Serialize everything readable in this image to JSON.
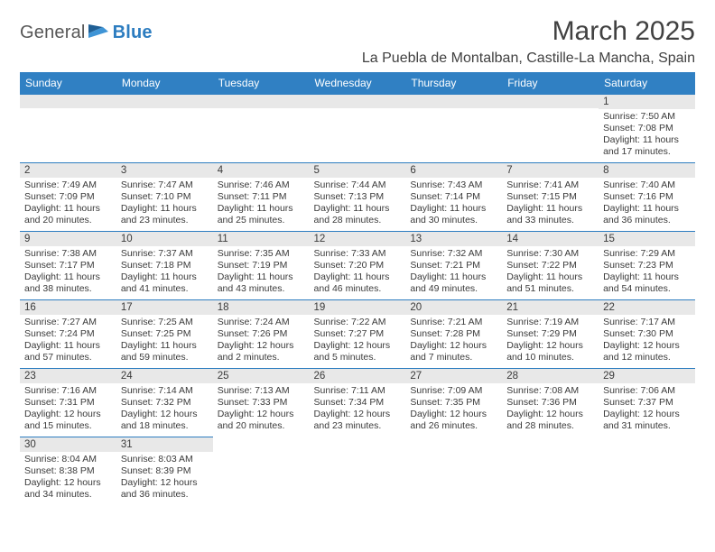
{
  "brand": {
    "part1": "General",
    "part2": "Blue"
  },
  "title": "March 2025",
  "location": "La Puebla de Montalban, Castille-La Mancha, Spain",
  "colors": {
    "header_bg": "#3080c3",
    "header_fg": "#ffffff",
    "daynum_bg": "#e8e8e8",
    "row_border": "#2d7dc0",
    "text": "#3a3a3a",
    "title_text": "#414141",
    "logo_gray": "#575757",
    "logo_blue": "#2d7dc0",
    "page_bg": "#ffffff"
  },
  "typography": {
    "title_fontsize": 30,
    "location_fontsize": 16,
    "dayhead_fontsize": 12,
    "daynum_fontsize": 11.5,
    "info_fontsize": 10.5
  },
  "daysOfWeek": [
    "Sunday",
    "Monday",
    "Tuesday",
    "Wednesday",
    "Thursday",
    "Friday",
    "Saturday"
  ],
  "grid": [
    [
      null,
      null,
      null,
      null,
      null,
      null,
      {
        "n": "1",
        "sr": "Sunrise: 7:50 AM",
        "ss": "Sunset: 7:08 PM",
        "d1": "Daylight: 11 hours",
        "d2": "and 17 minutes."
      }
    ],
    [
      {
        "n": "2",
        "sr": "Sunrise: 7:49 AM",
        "ss": "Sunset: 7:09 PM",
        "d1": "Daylight: 11 hours",
        "d2": "and 20 minutes."
      },
      {
        "n": "3",
        "sr": "Sunrise: 7:47 AM",
        "ss": "Sunset: 7:10 PM",
        "d1": "Daylight: 11 hours",
        "d2": "and 23 minutes."
      },
      {
        "n": "4",
        "sr": "Sunrise: 7:46 AM",
        "ss": "Sunset: 7:11 PM",
        "d1": "Daylight: 11 hours",
        "d2": "and 25 minutes."
      },
      {
        "n": "5",
        "sr": "Sunrise: 7:44 AM",
        "ss": "Sunset: 7:13 PM",
        "d1": "Daylight: 11 hours",
        "d2": "and 28 minutes."
      },
      {
        "n": "6",
        "sr": "Sunrise: 7:43 AM",
        "ss": "Sunset: 7:14 PM",
        "d1": "Daylight: 11 hours",
        "d2": "and 30 minutes."
      },
      {
        "n": "7",
        "sr": "Sunrise: 7:41 AM",
        "ss": "Sunset: 7:15 PM",
        "d1": "Daylight: 11 hours",
        "d2": "and 33 minutes."
      },
      {
        "n": "8",
        "sr": "Sunrise: 7:40 AM",
        "ss": "Sunset: 7:16 PM",
        "d1": "Daylight: 11 hours",
        "d2": "and 36 minutes."
      }
    ],
    [
      {
        "n": "9",
        "sr": "Sunrise: 7:38 AM",
        "ss": "Sunset: 7:17 PM",
        "d1": "Daylight: 11 hours",
        "d2": "and 38 minutes."
      },
      {
        "n": "10",
        "sr": "Sunrise: 7:37 AM",
        "ss": "Sunset: 7:18 PM",
        "d1": "Daylight: 11 hours",
        "d2": "and 41 minutes."
      },
      {
        "n": "11",
        "sr": "Sunrise: 7:35 AM",
        "ss": "Sunset: 7:19 PM",
        "d1": "Daylight: 11 hours",
        "d2": "and 43 minutes."
      },
      {
        "n": "12",
        "sr": "Sunrise: 7:33 AM",
        "ss": "Sunset: 7:20 PM",
        "d1": "Daylight: 11 hours",
        "d2": "and 46 minutes."
      },
      {
        "n": "13",
        "sr": "Sunrise: 7:32 AM",
        "ss": "Sunset: 7:21 PM",
        "d1": "Daylight: 11 hours",
        "d2": "and 49 minutes."
      },
      {
        "n": "14",
        "sr": "Sunrise: 7:30 AM",
        "ss": "Sunset: 7:22 PM",
        "d1": "Daylight: 11 hours",
        "d2": "and 51 minutes."
      },
      {
        "n": "15",
        "sr": "Sunrise: 7:29 AM",
        "ss": "Sunset: 7:23 PM",
        "d1": "Daylight: 11 hours",
        "d2": "and 54 minutes."
      }
    ],
    [
      {
        "n": "16",
        "sr": "Sunrise: 7:27 AM",
        "ss": "Sunset: 7:24 PM",
        "d1": "Daylight: 11 hours",
        "d2": "and 57 minutes."
      },
      {
        "n": "17",
        "sr": "Sunrise: 7:25 AM",
        "ss": "Sunset: 7:25 PM",
        "d1": "Daylight: 11 hours",
        "d2": "and 59 minutes."
      },
      {
        "n": "18",
        "sr": "Sunrise: 7:24 AM",
        "ss": "Sunset: 7:26 PM",
        "d1": "Daylight: 12 hours",
        "d2": "and 2 minutes."
      },
      {
        "n": "19",
        "sr": "Sunrise: 7:22 AM",
        "ss": "Sunset: 7:27 PM",
        "d1": "Daylight: 12 hours",
        "d2": "and 5 minutes."
      },
      {
        "n": "20",
        "sr": "Sunrise: 7:21 AM",
        "ss": "Sunset: 7:28 PM",
        "d1": "Daylight: 12 hours",
        "d2": "and 7 minutes."
      },
      {
        "n": "21",
        "sr": "Sunrise: 7:19 AM",
        "ss": "Sunset: 7:29 PM",
        "d1": "Daylight: 12 hours",
        "d2": "and 10 minutes."
      },
      {
        "n": "22",
        "sr": "Sunrise: 7:17 AM",
        "ss": "Sunset: 7:30 PM",
        "d1": "Daylight: 12 hours",
        "d2": "and 12 minutes."
      }
    ],
    [
      {
        "n": "23",
        "sr": "Sunrise: 7:16 AM",
        "ss": "Sunset: 7:31 PM",
        "d1": "Daylight: 12 hours",
        "d2": "and 15 minutes."
      },
      {
        "n": "24",
        "sr": "Sunrise: 7:14 AM",
        "ss": "Sunset: 7:32 PM",
        "d1": "Daylight: 12 hours",
        "d2": "and 18 minutes."
      },
      {
        "n": "25",
        "sr": "Sunrise: 7:13 AM",
        "ss": "Sunset: 7:33 PM",
        "d1": "Daylight: 12 hours",
        "d2": "and 20 minutes."
      },
      {
        "n": "26",
        "sr": "Sunrise: 7:11 AM",
        "ss": "Sunset: 7:34 PM",
        "d1": "Daylight: 12 hours",
        "d2": "and 23 minutes."
      },
      {
        "n": "27",
        "sr": "Sunrise: 7:09 AM",
        "ss": "Sunset: 7:35 PM",
        "d1": "Daylight: 12 hours",
        "d2": "and 26 minutes."
      },
      {
        "n": "28",
        "sr": "Sunrise: 7:08 AM",
        "ss": "Sunset: 7:36 PM",
        "d1": "Daylight: 12 hours",
        "d2": "and 28 minutes."
      },
      {
        "n": "29",
        "sr": "Sunrise: 7:06 AM",
        "ss": "Sunset: 7:37 PM",
        "d1": "Daylight: 12 hours",
        "d2": "and 31 minutes."
      }
    ],
    [
      {
        "n": "30",
        "sr": "Sunrise: 8:04 AM",
        "ss": "Sunset: 8:38 PM",
        "d1": "Daylight: 12 hours",
        "d2": "and 34 minutes."
      },
      {
        "n": "31",
        "sr": "Sunrise: 8:03 AM",
        "ss": "Sunset: 8:39 PM",
        "d1": "Daylight: 12 hours",
        "d2": "and 36 minutes."
      },
      null,
      null,
      null,
      null,
      null
    ]
  ]
}
